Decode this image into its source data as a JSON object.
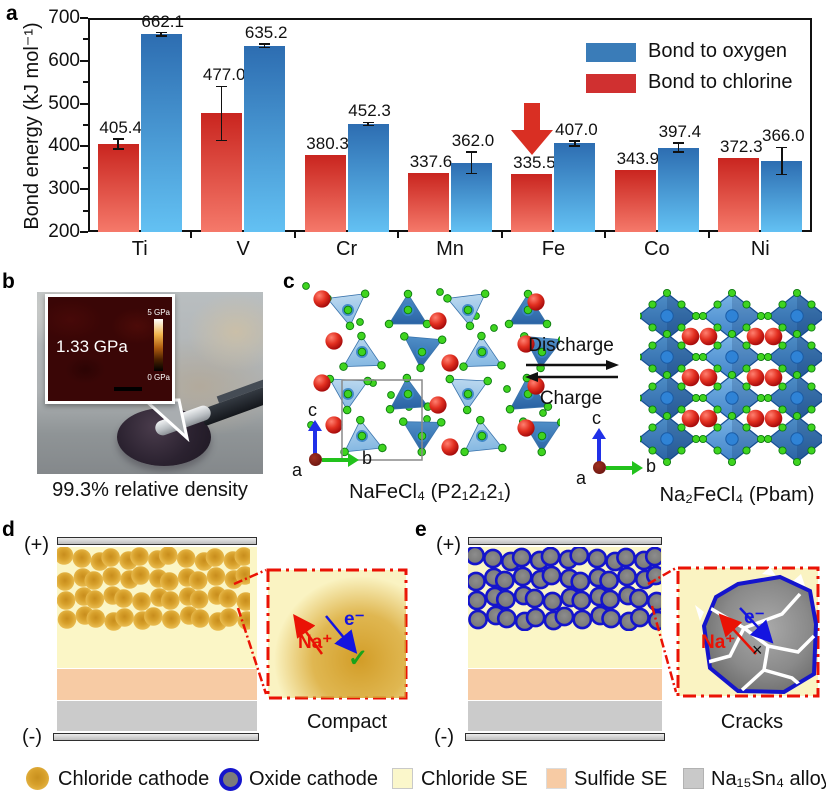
{
  "panels": {
    "a": "a",
    "b": "b",
    "c": "c",
    "d": "d",
    "e": "e"
  },
  "chart_data": {
    "type": "bar",
    "title": "",
    "ylabel": "Bond energy (kJ mol⁻¹)",
    "xlabel": "",
    "ylim": [
      200,
      700
    ],
    "yticks": [
      200,
      300,
      400,
      500,
      600,
      700
    ],
    "categories": [
      "Ti",
      "V",
      "Cr",
      "Mn",
      "Fe",
      "Co",
      "Ni"
    ],
    "series": [
      {
        "name": "Bond to chlorine",
        "color": "#d03030",
        "gradient": [
          "#c9251f",
          "#f5796a"
        ],
        "values": [
          405.4,
          477.0,
          380.3,
          337.6,
          335.5,
          343.9,
          372.3
        ],
        "errors": [
          12,
          63,
          0,
          0,
          0,
          0,
          0
        ]
      },
      {
        "name": "Bond to oxygen",
        "color": "#3a7cb8",
        "gradient": [
          "#2d6db1",
          "#63c1f3"
        ],
        "values": [
          662.1,
          635.2,
          452.3,
          362.0,
          407.0,
          397.4,
          366.0
        ],
        "errors": [
          4,
          4,
          4,
          25,
          6,
          10,
          32
        ]
      }
    ],
    "legend": [
      {
        "label": "Bond to oxygen",
        "color": "#3a7cb8"
      },
      {
        "label": "Bond to chlorine",
        "color": "#d03030"
      }
    ],
    "annotation": {
      "type": "down-arrow",
      "target": "Fe",
      "series": "Bond to chlorine",
      "color": "#d92f23"
    }
  },
  "photo": {
    "hardness_value": "1.33 GPa",
    "colorbar_top": "5 GPa",
    "colorbar_bottom": "0 GPa",
    "caption": "99.3% relative density"
  },
  "structures": {
    "discharge": "Discharge",
    "charge": "Charge",
    "left_caption": "NaFeCl₄ (P2₁2₁2₁)",
    "right_caption": "Na₂FeCl₄ (Pbam)",
    "axis": {
      "a": "a",
      "b": "b",
      "c": "c"
    }
  },
  "cells": {
    "positive": "(+)",
    "negative": "(-)",
    "na_ion": "Na⁺",
    "electron": "e⁻",
    "check": "✓",
    "cross": "×",
    "compact_caption": "Compact",
    "cracks_caption": "Cracks"
  },
  "legend": {
    "items": [
      {
        "label": "Chloride cathode",
        "swatch": "gold-circle",
        "color": "#e2a92f"
      },
      {
        "label": "Oxide cathode",
        "swatch": "blue-ring-circle",
        "color": "#7b7b7b",
        "ring": "#1414cc"
      },
      {
        "label": "Chloride SE",
        "swatch": "square",
        "color": "#fbf7cb"
      },
      {
        "label": "Sulfide SE",
        "swatch": "square",
        "color": "#f7cba4"
      },
      {
        "label": "Na₁₅Sn₄ alloy",
        "swatch": "square",
        "color": "#c9c9c9"
      }
    ]
  }
}
